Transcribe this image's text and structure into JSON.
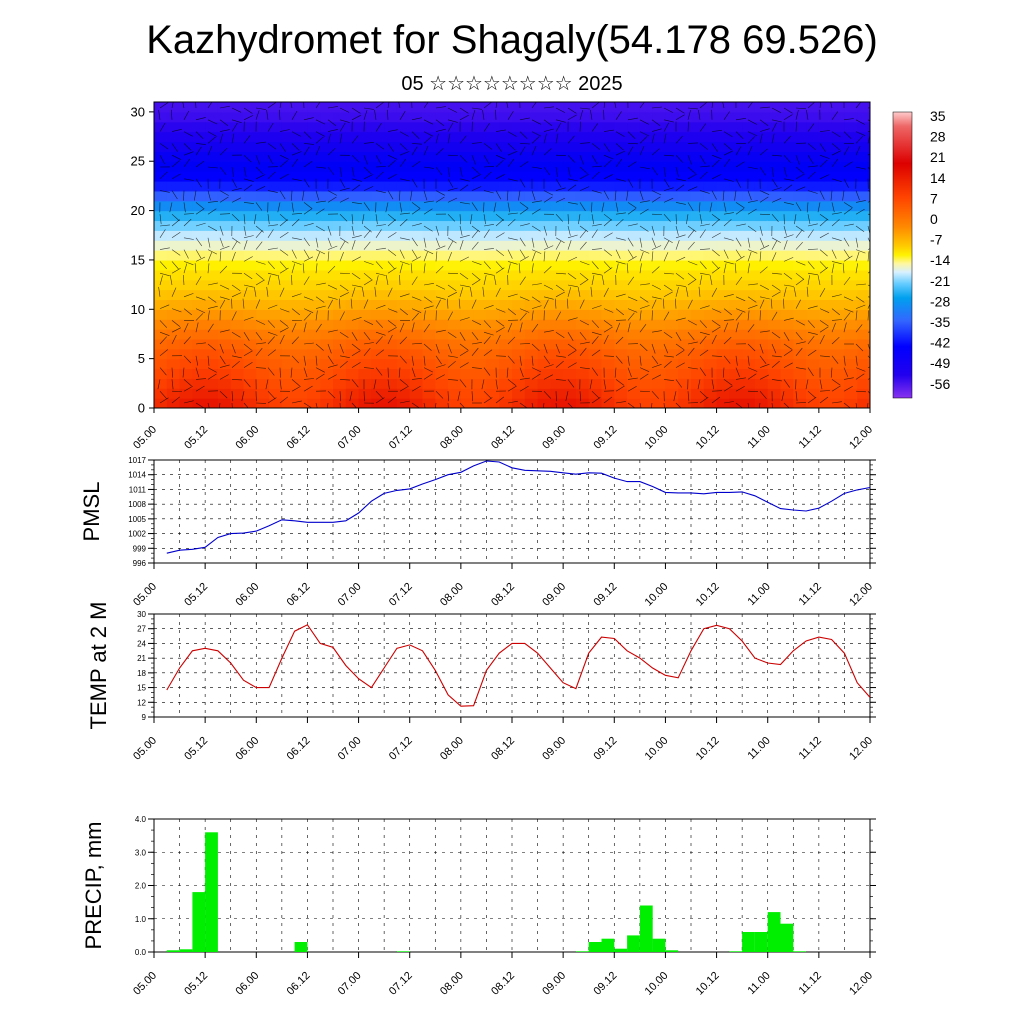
{
  "page": {
    "title": "Kazhydromet for Shagaly(54.178 69.526)",
    "subtitle": "05 ☆☆☆☆☆☆☆☆ 2025"
  },
  "colorbar": {
    "labels": [
      "35",
      "28",
      "21",
      "14",
      "7",
      "0",
      "-7",
      "-14",
      "-21",
      "-28",
      "-35",
      "-42",
      "-49",
      "-56"
    ]
  },
  "chart_data": [
    {
      "type": "heatmap",
      "name": "cross-section",
      "title": "",
      "xlabel": "",
      "ylabel": "",
      "x_ticks": [
        "05.00",
        "05.12",
        "06.00",
        "06.12",
        "07.00",
        "07.12",
        "08.00",
        "08.12",
        "09.00",
        "09.12",
        "10.00",
        "10.12",
        "11.00",
        "11.12",
        "12.00"
      ],
      "y_ticks": [
        0,
        5,
        10,
        15,
        20,
        25,
        30
      ],
      "ylim": [
        0,
        31
      ],
      "value_range": [
        -60,
        38
      ],
      "temperature_by_level": {
        "levels": [
          0,
          2,
          4,
          6,
          8,
          10,
          12,
          14,
          15,
          16,
          17,
          18,
          19,
          20,
          21,
          22,
          23,
          24,
          25,
          26,
          27,
          28,
          29,
          30,
          31
        ],
        "values": [
          24,
          22,
          20,
          18,
          15,
          11,
          7,
          2,
          -2,
          -8,
          -13,
          -18,
          -23,
          -28,
          -33,
          -38,
          -42,
          -46,
          -49,
          -52,
          -54,
          -56,
          -57,
          -58,
          -58
        ]
      },
      "wind_overlay": true
    },
    {
      "type": "line",
      "name": "pmsl",
      "ylabel": "PMSL",
      "ylim": [
        996,
        1017
      ],
      "y_ticks": [
        996,
        999,
        1002,
        1005,
        1008,
        1011,
        1014,
        1017
      ],
      "x_ticks": [
        "05.00",
        "05.12",
        "06.00",
        "06.12",
        "07.00",
        "07.12",
        "08.00",
        "08.12",
        "09.00",
        "09.12",
        "10.00",
        "10.12",
        "11.00",
        "11.12",
        "12.00"
      ],
      "color": "#0000cc",
      "series": [
        {
          "x": [
            0,
            3,
            6,
            9,
            12,
            15,
            18,
            21,
            24,
            27,
            30,
            33,
            36,
            39,
            42,
            45,
            48,
            51,
            54,
            57,
            60,
            63,
            66,
            69,
            72,
            75,
            78,
            81,
            84,
            87,
            90,
            93,
            96,
            99,
            102,
            105,
            108,
            111,
            114,
            117,
            120,
            123,
            126,
            129,
            132,
            135,
            138,
            141,
            144,
            147,
            150,
            153,
            156,
            159,
            162,
            165
          ],
          "values": [
            998,
            998.6,
            998.8,
            999.2,
            1001.2,
            1002,
            1002.1,
            1002.5,
            1003.6,
            1004.8,
            1004.6,
            1004.3,
            1004.3,
            1004.3,
            1004.6,
            1006.2,
            1008.6,
            1010.2,
            1010.8,
            1011.1,
            1012.1,
            1013,
            1014,
            1014.5,
            1015.8,
            1016.8,
            1016.6,
            1015.4,
            1014.9,
            1014.8,
            1014.7,
            1014.4,
            1014.1,
            1014.4,
            1014.3,
            1013.3,
            1012.6,
            1012.6,
            1011.6,
            1010.4,
            1010.3,
            1010.3,
            1010.1,
            1010.4,
            1010.4,
            1010.5,
            1009.7,
            1008.4,
            1007.1,
            1006.8,
            1006.6,
            1007.2,
            1008.6,
            1010.2,
            1010.9,
            1011.4
          ]
        }
      ]
    },
    {
      "type": "line",
      "name": "temp2m",
      "ylabel": "TEMP at 2 M",
      "ylim": [
        9,
        30
      ],
      "y_ticks": [
        9,
        12,
        15,
        18,
        21,
        24,
        27,
        30
      ],
      "x_ticks": [
        "05.00",
        "05.12",
        "06.00",
        "06.12",
        "07.00",
        "07.12",
        "08.00",
        "08.12",
        "09.00",
        "09.12",
        "10.00",
        "10.12",
        "11.00",
        "11.12",
        "12.00"
      ],
      "color": "#cc0000",
      "series": [
        {
          "x": [
            0,
            3,
            6,
            9,
            12,
            15,
            18,
            21,
            24,
            27,
            30,
            33,
            36,
            39,
            42,
            45,
            48,
            51,
            54,
            57,
            60,
            63,
            66,
            69,
            72,
            75,
            78,
            81,
            84,
            87,
            90,
            93,
            96,
            99,
            102,
            105,
            108,
            111,
            114,
            117,
            120,
            123,
            126,
            129,
            132,
            135,
            138,
            141,
            144,
            147,
            150,
            153,
            156,
            159,
            162,
            165
          ],
          "values": [
            14.5,
            19,
            22.5,
            23,
            22.5,
            20,
            16.5,
            15,
            15,
            21,
            26.5,
            27.8,
            24,
            23.2,
            19.5,
            16.8,
            15,
            19,
            23,
            23.7,
            22.5,
            18.5,
            13.5,
            11.2,
            11.3,
            18.5,
            22,
            24,
            24,
            22,
            19,
            16,
            14.8,
            22,
            25.3,
            25,
            22.5,
            21,
            19,
            17.5,
            17,
            22.5,
            27,
            27.7,
            27,
            24.5,
            21,
            20,
            19.7,
            22.5,
            24.5,
            25.3,
            24.8,
            22,
            16,
            13
          ]
        }
      ]
    },
    {
      "type": "bar",
      "name": "precip",
      "ylabel": "PRECIP, mm",
      "ylim": [
        0,
        4
      ],
      "y_ticks": [
        "0.0",
        "1.0",
        "2.0",
        "3.0",
        "4.0"
      ],
      "x_ticks": [
        "05.00",
        "05.12",
        "06.00",
        "06.12",
        "07.00",
        "07.12",
        "08.00",
        "08.12",
        "09.00",
        "09.12",
        "10.00",
        "10.12",
        "11.00",
        "11.12",
        "12.00"
      ],
      "color": "#00ee00",
      "series": [
        {
          "x": [
            3,
            6,
            9,
            12,
            33,
            57,
            99,
            102,
            105,
            108,
            111,
            114,
            117,
            120,
            135,
            138,
            141,
            144,
            147,
            150
          ],
          "values": [
            0.05,
            0.08,
            1.8,
            3.6,
            0.3,
            0.02,
            0.02,
            0.3,
            0.4,
            0.1,
            0.5,
            1.4,
            0.4,
            0.05,
            0.02,
            0.6,
            0.6,
            1.2,
            0.85,
            0.02
          ]
        }
      ]
    }
  ]
}
